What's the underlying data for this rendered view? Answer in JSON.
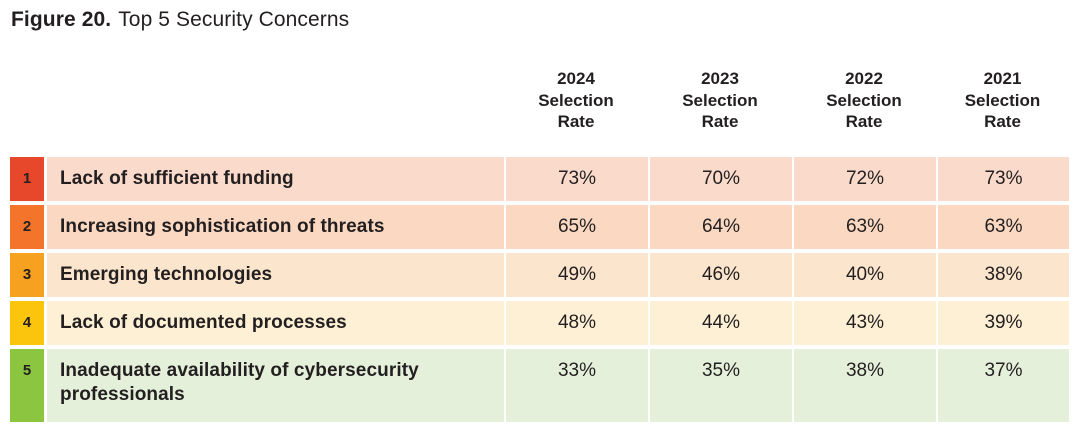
{
  "figure": {
    "label": "Figure 20.",
    "title": "Top 5 Security Concerns"
  },
  "columns": [
    {
      "header": "2024\nSelection\nRate"
    },
    {
      "header": "2023\nSelection\nRate"
    },
    {
      "header": "2022\nSelection\nRate"
    },
    {
      "header": "2021\nSelection\nRate"
    }
  ],
  "table": {
    "rows": [
      {
        "rank": "1",
        "label": "Lack of sufficient funding",
        "values": [
          "73%",
          "70%",
          "72%",
          "73%"
        ],
        "badge_color": "#E7482C",
        "row_color": "#FADBCB"
      },
      {
        "rank": "2",
        "label": "Increasing sophistication of threats",
        "values": [
          "65%",
          "64%",
          "63%",
          "63%"
        ],
        "badge_color": "#F3742A",
        "row_color": "#FAD8C1"
      },
      {
        "rank": "3",
        "label": "Emerging technologies",
        "values": [
          "49%",
          "46%",
          "40%",
          "38%"
        ],
        "badge_color": "#F6A11F",
        "row_color": "#FBE5CD"
      },
      {
        "rank": "4",
        "label": "Lack of documented processes",
        "values": [
          "48%",
          "44%",
          "43%",
          "39%"
        ],
        "badge_color": "#FCC50D",
        "row_color": "#FDF0D4"
      },
      {
        "rank": "5",
        "label": "Inadequate availability of cybersecurity professionals",
        "values": [
          "33%",
          "35%",
          "38%",
          "37%"
        ],
        "badge_color": "#8CC640",
        "row_color": "#E5F0DB"
      }
    ]
  },
  "chart_data": {
    "type": "table",
    "title": "Figure 20. Top 5 Security Concerns",
    "columns": [
      "2024 Selection Rate",
      "2023 Selection Rate",
      "2022 Selection Rate",
      "2021 Selection Rate"
    ],
    "rows": [
      {
        "rank": 1,
        "concern": "Lack of sufficient funding",
        "values_pct": [
          73,
          70,
          72,
          73
        ]
      },
      {
        "rank": 2,
        "concern": "Increasing sophistication of threats",
        "values_pct": [
          65,
          64,
          63,
          63
        ]
      },
      {
        "rank": 3,
        "concern": "Emerging technologies",
        "values_pct": [
          49,
          46,
          40,
          38
        ]
      },
      {
        "rank": 4,
        "concern": "Lack of documented processes",
        "values_pct": [
          48,
          44,
          43,
          39
        ]
      },
      {
        "rank": 5,
        "concern": "Inadequate availability of cybersecurity professionals",
        "values_pct": [
          33,
          35,
          38,
          37
        ]
      }
    ],
    "rank_colors": [
      "#E7482C",
      "#F3742A",
      "#F6A11F",
      "#FCC50D",
      "#8CC640"
    ],
    "layout": {
      "legend": false,
      "grid": false,
      "unit": "percent"
    }
  }
}
